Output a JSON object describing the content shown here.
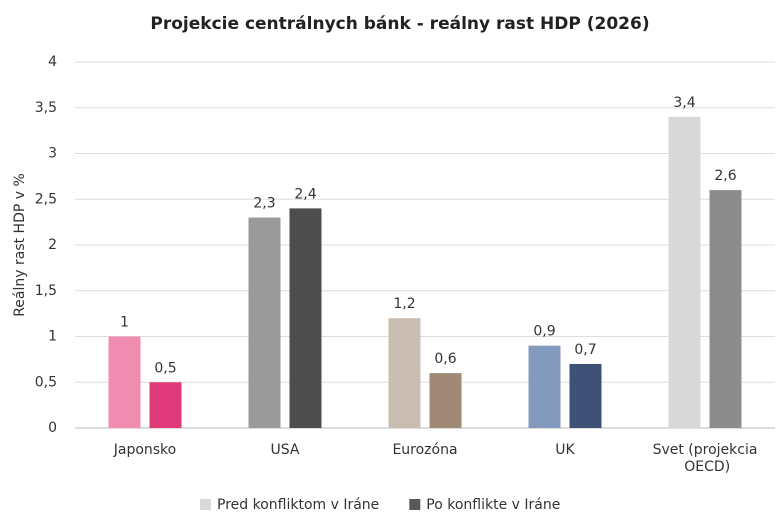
{
  "chart_data": {
    "type": "bar",
    "title": "Projekcie centrálnych bánk - reálny rast HDP (2026)",
    "y_label": "Reálny rast HDP v %",
    "categories": [
      "Japonsko",
      "USA",
      "Eurozóna",
      "UK",
      "Svet (projekcia OECD)"
    ],
    "series": [
      {
        "name": "Pred konfliktom v Iráne",
        "color": "#d9d9d9",
        "colors": [
          "#f08cb0",
          "#9a9a9a",
          "#c9bcb0",
          "#8499be",
          "#d9d9d9"
        ],
        "values": [
          1,
          2.3,
          1.2,
          0.9,
          3.4
        ],
        "value_labels": [
          "1",
          "2,3",
          "1,2",
          "0,9",
          "3,4"
        ]
      },
      {
        "name": "Po konflikte v Iráne",
        "color": "#595959",
        "colors": [
          "#e03a78",
          "#4d4d4d",
          "#a08a76",
          "#3f5275",
          "#8c8c8c"
        ],
        "values": [
          0.5,
          2.4,
          0.6,
          0.7,
          2.6
        ],
        "value_labels": [
          "0,5",
          "2,4",
          "0,6",
          "0,7",
          "2,6"
        ]
      }
    ],
    "ylim": [
      0,
      4
    ],
    "yticks": [
      0,
      {
        "value": 0.5,
        "label": "0,5"
      },
      1,
      {
        "value": 1.5,
        "label": "1,5"
      },
      2,
      {
        "value": 2.5,
        "label": "2,5"
      },
      3,
      {
        "value": 3.5,
        "label": "3,5"
      },
      4
    ],
    "grid": true,
    "legend": "bottom"
  }
}
